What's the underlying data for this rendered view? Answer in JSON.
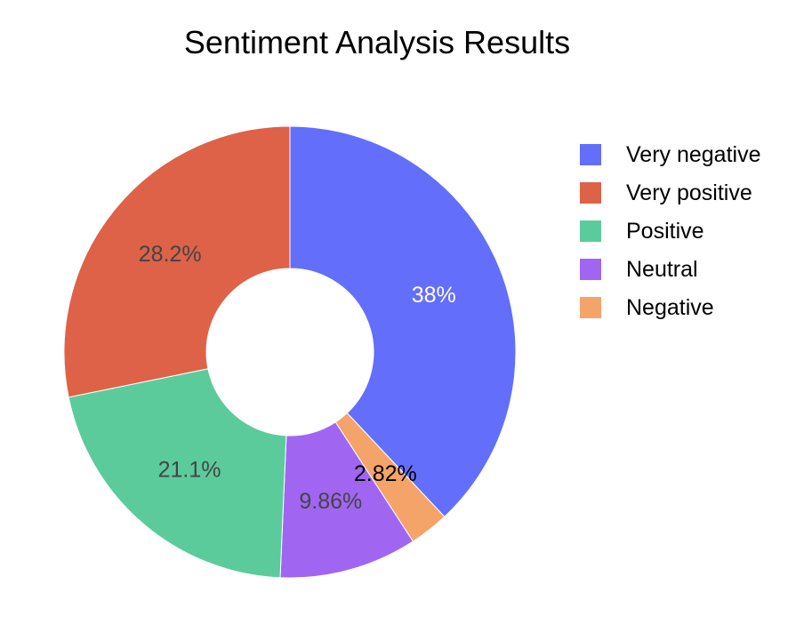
{
  "chart_data": {
    "type": "pie",
    "hole": 0.37,
    "title": "Sentiment Analysis Results",
    "slices": [
      {
        "name": "Very negative",
        "value": 38.0,
        "label": "38%",
        "color": "#636EFA",
        "label_color": "#FFFFFF"
      },
      {
        "name": "Negative",
        "value": 2.82,
        "label": "2.82%",
        "color": "#F4A469",
        "label_color": "#000000"
      },
      {
        "name": "Neutral",
        "value": 9.86,
        "label": "9.86%",
        "color": "#A066F2",
        "label_color": "#444444"
      },
      {
        "name": "Positive",
        "value": 21.1,
        "label": "21.1%",
        "color": "#5CCB9C",
        "label_color": "#444444"
      },
      {
        "name": "Very positive",
        "value": 28.2,
        "label": "28.2%",
        "color": "#DD6248",
        "label_color": "#444444"
      }
    ],
    "legend": {
      "position": "right",
      "items": [
        {
          "name": "Very negative",
          "color": "#636EFA"
        },
        {
          "name": "Very positive",
          "color": "#DD6248"
        },
        {
          "name": "Positive",
          "color": "#5CCB9C"
        },
        {
          "name": "Neutral",
          "color": "#A066F2"
        },
        {
          "name": "Negative",
          "color": "#F4A469"
        }
      ]
    }
  }
}
